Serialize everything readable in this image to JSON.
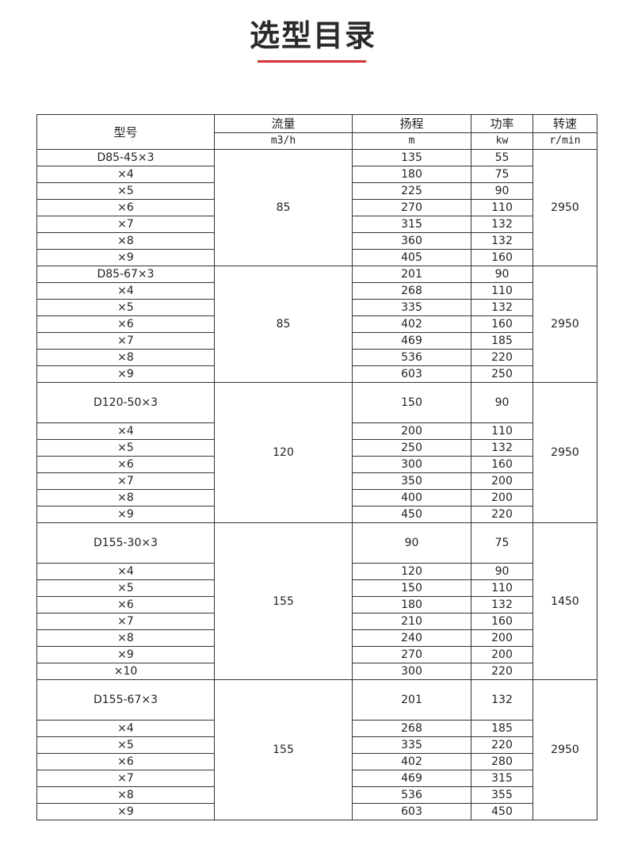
{
  "title": "选型目录",
  "accent_color": "#d9303a",
  "header": {
    "model": "型号",
    "flow": "流量",
    "head": "扬程",
    "power": "功率",
    "speed": "转速",
    "flow_unit": "m3/h",
    "head_unit": "m",
    "power_unit": "kw",
    "speed_unit": "r/min"
  },
  "groups": [
    {
      "flow": "85",
      "speed": "2950",
      "tall_first": false,
      "rows": [
        [
          "D85-45×3",
          "135",
          "55"
        ],
        [
          "×4",
          "180",
          "75"
        ],
        [
          "×5",
          "225",
          "90"
        ],
        [
          "×6",
          "270",
          "110"
        ],
        [
          "×7",
          "315",
          "132"
        ],
        [
          "×8",
          "360",
          "132"
        ],
        [
          "×9",
          "405",
          "160"
        ]
      ]
    },
    {
      "flow": "85",
      "speed": "2950",
      "tall_first": false,
      "rows": [
        [
          "D85-67×3",
          "201",
          "90"
        ],
        [
          "×4",
          "268",
          "110"
        ],
        [
          "×5",
          "335",
          "132"
        ],
        [
          "×6",
          "402",
          "160"
        ],
        [
          "×7",
          "469",
          "185"
        ],
        [
          "×8",
          "536",
          "220"
        ],
        [
          "×9",
          "603",
          "250"
        ]
      ]
    },
    {
      "flow": "120",
      "speed": "2950",
      "tall_first": true,
      "rows": [
        [
          "D120-50×3",
          "150",
          "90"
        ],
        [
          "×4",
          "200",
          "110"
        ],
        [
          "×5",
          "250",
          "132"
        ],
        [
          "×6",
          "300",
          "160"
        ],
        [
          "×7",
          "350",
          "200"
        ],
        [
          "×8",
          "400",
          "200"
        ],
        [
          "×9",
          "450",
          "220"
        ]
      ]
    },
    {
      "flow": "155",
      "speed": "1450",
      "tall_first": true,
      "rows": [
        [
          "D155-30×3",
          "90",
          "75"
        ],
        [
          "×4",
          "120",
          "90"
        ],
        [
          "×5",
          "150",
          "110"
        ],
        [
          "×6",
          "180",
          "132"
        ],
        [
          "×7",
          "210",
          "160"
        ],
        [
          "×8",
          "240",
          "200"
        ],
        [
          "×9",
          "270",
          "200"
        ],
        [
          "×10",
          "300",
          "220"
        ]
      ]
    },
    {
      "flow": "155",
      "speed": "2950",
      "tall_first": true,
      "rows": [
        [
          "D155-67×3",
          "201",
          "132"
        ],
        [
          "×4",
          "268",
          "185"
        ],
        [
          "×5",
          "335",
          "220"
        ],
        [
          "×6",
          "402",
          "280"
        ],
        [
          "×7",
          "469",
          "315"
        ],
        [
          "×8",
          "536",
          "355"
        ],
        [
          "×9",
          "603",
          "450"
        ]
      ]
    }
  ]
}
